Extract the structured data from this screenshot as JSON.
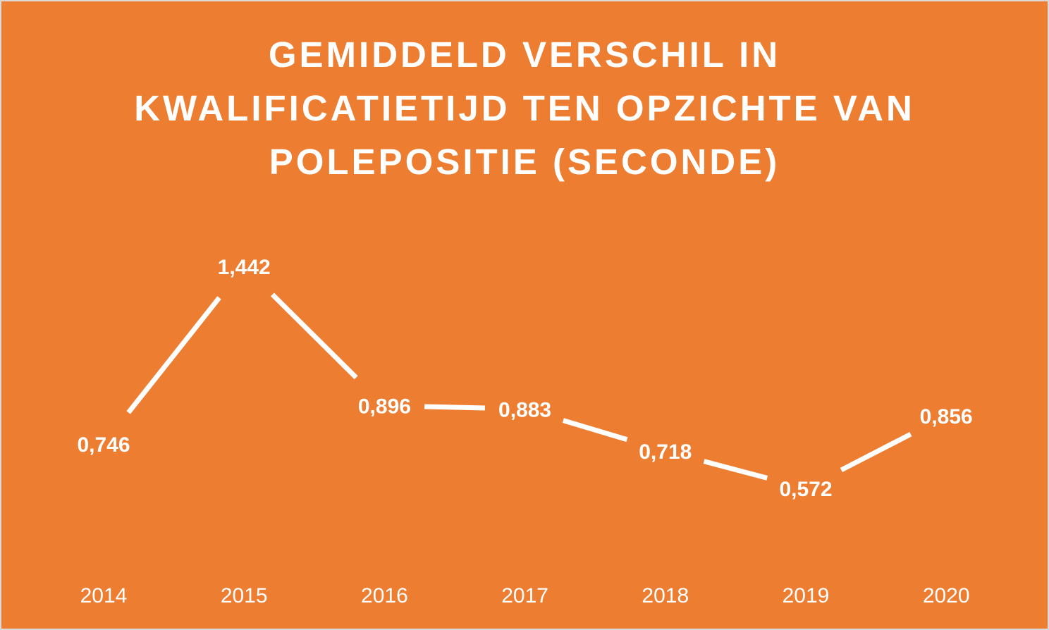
{
  "chart_data": {
    "type": "line",
    "title_lines": [
      "GEMIDDELD VERSCHIL IN",
      "KWALIFICATIETIJD TEN OPZICHTE VAN",
      "POLEPOSITIE (SECONDE)"
    ],
    "categories": [
      "2014",
      "2015",
      "2016",
      "2017",
      "2018",
      "2019",
      "2020"
    ],
    "values": [
      0.746,
      1.442,
      0.896,
      0.883,
      0.718,
      0.572,
      0.856
    ],
    "data_labels": [
      "0,746",
      "1,442",
      "0,896",
      "0,883",
      "0,718",
      "0,572",
      "0,856"
    ],
    "ylim": [
      0,
      1.6
    ],
    "grid": false,
    "legend": "none",
    "drop_lines": true,
    "colors": {
      "background": "#ed7d31",
      "line": "#ffffff",
      "text": "#ffffff"
    }
  }
}
